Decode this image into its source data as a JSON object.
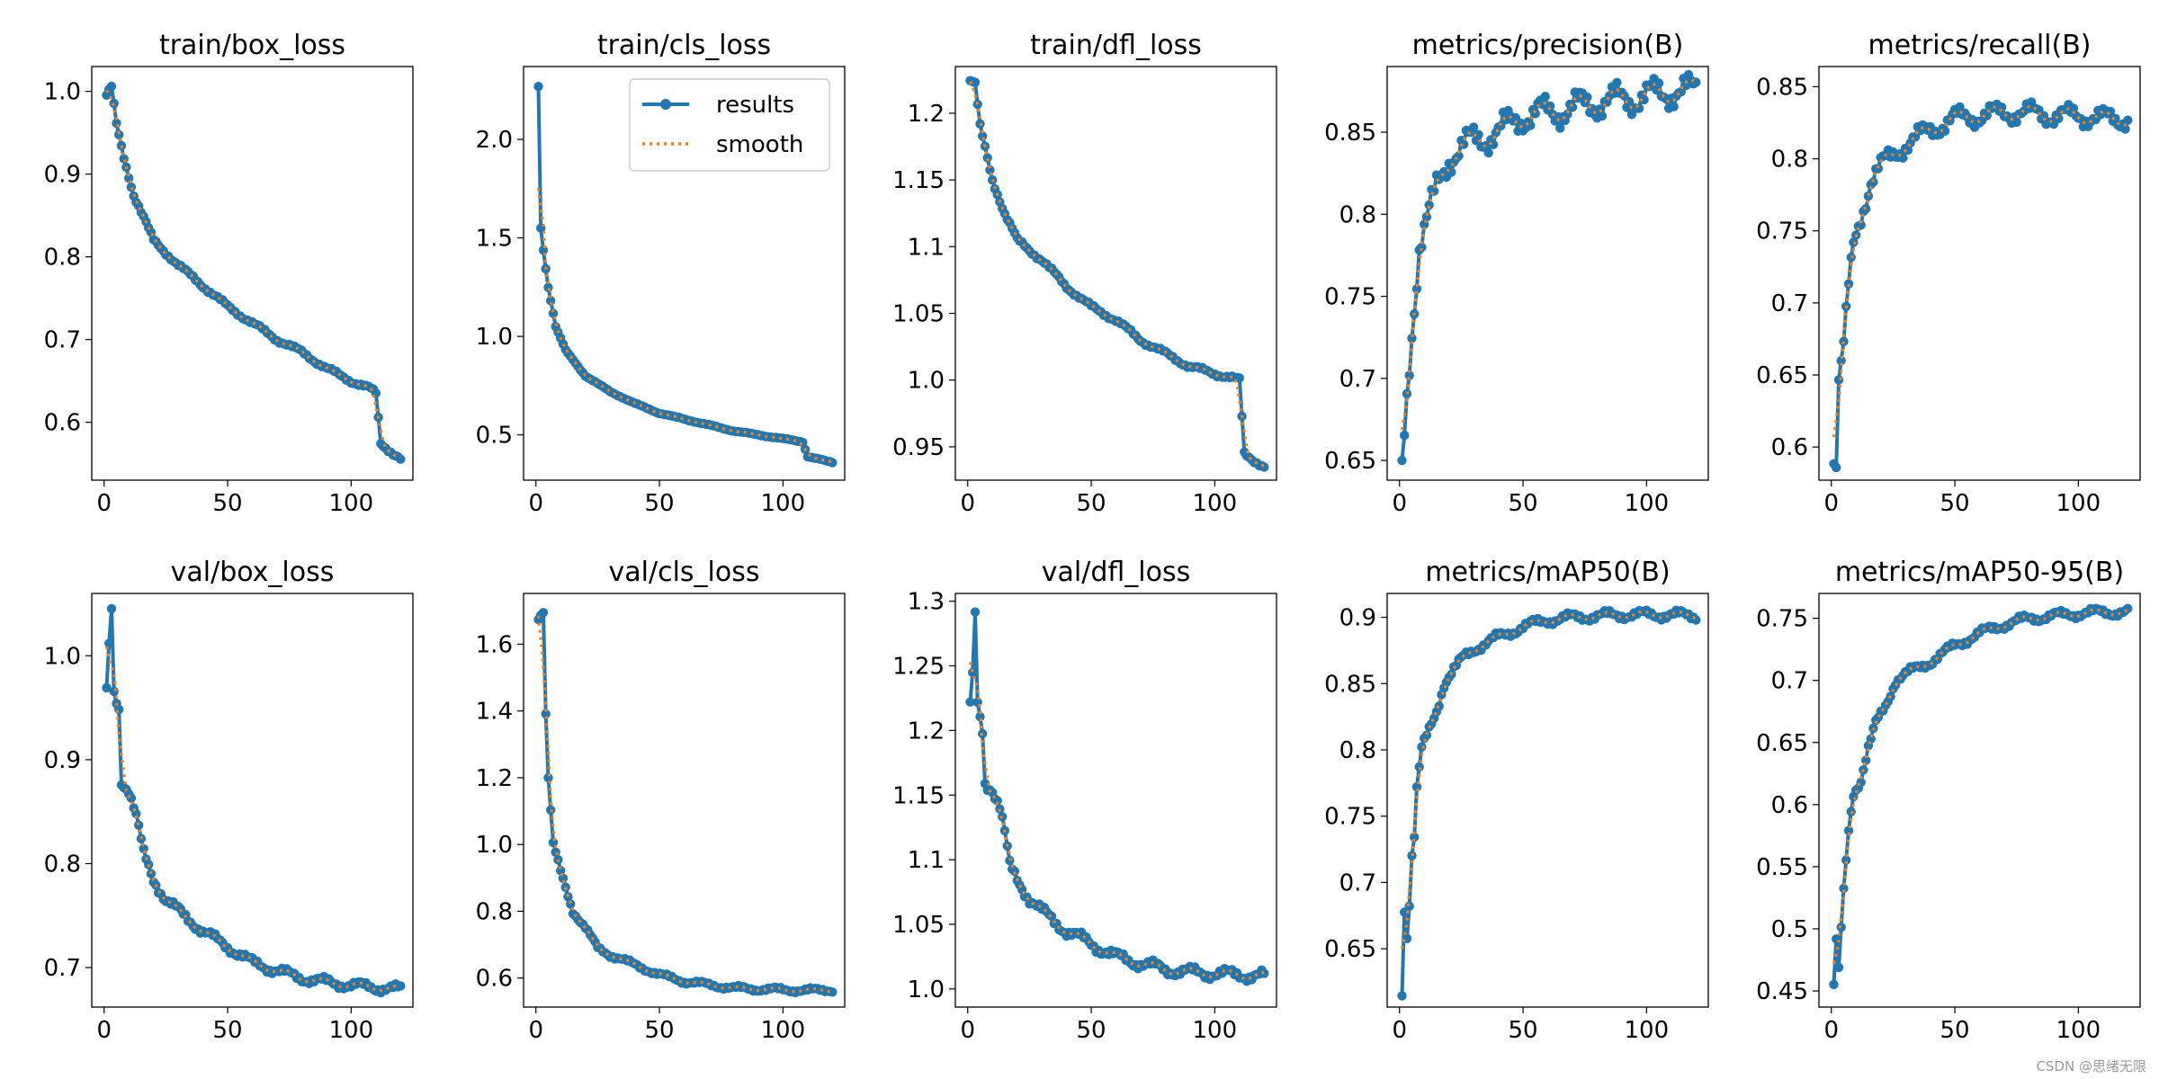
{
  "legend": {
    "results": "results",
    "smooth": "smooth",
    "position": "upper right of train/cls_loss"
  },
  "colors": {
    "results": "#1f77b4",
    "smooth": "#ff7f0e"
  },
  "watermark": "CSDN @思绪无限",
  "chart_data": [
    {
      "type": "line",
      "title": "train/box_loss",
      "xlim": [
        -5,
        125
      ],
      "ylim": [
        0.53,
        1.03
      ],
      "xticks": [
        0,
        50,
        100
      ],
      "yticks": [
        0.6,
        0.7,
        0.8,
        0.9,
        1.0
      ],
      "anchors": [
        [
          1,
          0.995
        ],
        [
          3,
          1.005
        ],
        [
          5,
          0.96
        ],
        [
          8,
          0.92
        ],
        [
          12,
          0.875
        ],
        [
          20,
          0.82
        ],
        [
          30,
          0.79
        ],
        [
          40,
          0.765
        ],
        [
          50,
          0.74
        ],
        [
          60,
          0.72
        ],
        [
          70,
          0.7
        ],
        [
          80,
          0.685
        ],
        [
          90,
          0.665
        ],
        [
          100,
          0.65
        ],
        [
          108,
          0.64
        ],
        [
          110,
          0.635
        ],
        [
          112,
          0.575
        ],
        [
          116,
          0.565
        ],
        [
          120,
          0.555
        ]
      ],
      "noise": 0.003,
      "series": [
        {
          "name": "results"
        },
        {
          "name": "smooth"
        }
      ]
    },
    {
      "type": "line",
      "title": "train/cls_loss",
      "xlim": [
        -5,
        125
      ],
      "ylim": [
        0.27,
        2.37
      ],
      "xticks": [
        0,
        50,
        100
      ],
      "yticks": [
        0.5,
        1.0,
        1.5,
        2.0
      ],
      "anchors": [
        [
          1,
          2.27
        ],
        [
          2,
          1.55
        ],
        [
          3,
          1.44
        ],
        [
          5,
          1.25
        ],
        [
          8,
          1.05
        ],
        [
          12,
          0.93
        ],
        [
          20,
          0.8
        ],
        [
          30,
          0.72
        ],
        [
          40,
          0.66
        ],
        [
          50,
          0.61
        ],
        [
          60,
          0.58
        ],
        [
          70,
          0.55
        ],
        [
          80,
          0.52
        ],
        [
          90,
          0.5
        ],
        [
          100,
          0.48
        ],
        [
          108,
          0.465
        ],
        [
          110,
          0.39
        ],
        [
          120,
          0.36
        ]
      ],
      "noise": 0.003,
      "series": [
        {
          "name": "results"
        },
        {
          "name": "smooth"
        }
      ]
    },
    {
      "type": "line",
      "title": "train/dfl_loss",
      "xlim": [
        -5,
        125
      ],
      "ylim": [
        0.925,
        1.235
      ],
      "xticks": [
        0,
        50,
        100
      ],
      "yticks": [
        0.95,
        1.0,
        1.05,
        1.1,
        1.15,
        1.2
      ],
      "anchors": [
        [
          1,
          1.225
        ],
        [
          3,
          1.222
        ],
        [
          5,
          1.19
        ],
        [
          10,
          1.15
        ],
        [
          15,
          1.125
        ],
        [
          20,
          1.105
        ],
        [
          30,
          1.09
        ],
        [
          40,
          1.07
        ],
        [
          50,
          1.055
        ],
        [
          60,
          1.045
        ],
        [
          70,
          1.03
        ],
        [
          80,
          1.02
        ],
        [
          90,
          1.01
        ],
        [
          100,
          1.005
        ],
        [
          110,
          1.0
        ],
        [
          112,
          0.945
        ],
        [
          120,
          0.935
        ]
      ],
      "noise": 0.002,
      "series": [
        {
          "name": "results"
        },
        {
          "name": "smooth"
        }
      ]
    },
    {
      "type": "line",
      "title": "metrics/precision(B)",
      "xlim": [
        -5,
        125
      ],
      "ylim": [
        0.638,
        0.89
      ],
      "xticks": [
        0,
        50,
        100
      ],
      "yticks": [
        0.65,
        0.7,
        0.75,
        0.8,
        0.85
      ],
      "anchors": [
        [
          1,
          0.645
        ],
        [
          3,
          0.69
        ],
        [
          5,
          0.73
        ],
        [
          8,
          0.78
        ],
        [
          12,
          0.8
        ],
        [
          16,
          0.82
        ],
        [
          20,
          0.835
        ],
        [
          30,
          0.845
        ],
        [
          40,
          0.85
        ],
        [
          50,
          0.86
        ],
        [
          60,
          0.862
        ],
        [
          70,
          0.865
        ],
        [
          80,
          0.868
        ],
        [
          90,
          0.87
        ],
        [
          100,
          0.872
        ],
        [
          110,
          0.875
        ],
        [
          120,
          0.875
        ]
      ],
      "noise": 0.011,
      "series": [
        {
          "name": "results"
        },
        {
          "name": "smooth"
        }
      ]
    },
    {
      "type": "line",
      "title": "metrics/recall(B)",
      "xlim": [
        -5,
        125
      ],
      "ylim": [
        0.577,
        0.864
      ],
      "xticks": [
        0,
        50,
        100
      ],
      "yticks": [
        0.6,
        0.65,
        0.7,
        0.75,
        0.8,
        0.85
      ],
      "anchors": [
        [
          1,
          0.59
        ],
        [
          2,
          0.59
        ],
        [
          3,
          0.645
        ],
        [
          5,
          0.67
        ],
        [
          7,
          0.71
        ],
        [
          9,
          0.74
        ],
        [
          12,
          0.76
        ],
        [
          16,
          0.785
        ],
        [
          20,
          0.795
        ],
        [
          30,
          0.81
        ],
        [
          40,
          0.82
        ],
        [
          50,
          0.828
        ],
        [
          60,
          0.83
        ],
        [
          70,
          0.832
        ],
        [
          80,
          0.832
        ],
        [
          90,
          0.83
        ],
        [
          100,
          0.83
        ],
        [
          110,
          0.828
        ],
        [
          120,
          0.828
        ]
      ],
      "noise": 0.008,
      "series": [
        {
          "name": "results"
        },
        {
          "name": "smooth"
        }
      ]
    },
    {
      "type": "line",
      "title": "val/box_loss",
      "xlim": [
        -5,
        125
      ],
      "ylim": [
        0.662,
        1.06
      ],
      "xticks": [
        0,
        50,
        100
      ],
      "yticks": [
        0.7,
        0.8,
        0.9,
        1.0
      ],
      "anchors": [
        [
          1,
          0.965
        ],
        [
          2,
          1.01
        ],
        [
          3,
          1.045
        ],
        [
          4,
          0.965
        ],
        [
          6,
          0.95
        ],
        [
          7,
          0.88
        ],
        [
          10,
          0.87
        ],
        [
          13,
          0.845
        ],
        [
          16,
          0.81
        ],
        [
          20,
          0.785
        ],
        [
          25,
          0.765
        ],
        [
          30,
          0.755
        ],
        [
          40,
          0.735
        ],
        [
          50,
          0.72
        ],
        [
          60,
          0.705
        ],
        [
          70,
          0.697
        ],
        [
          80,
          0.69
        ],
        [
          90,
          0.686
        ],
        [
          100,
          0.683
        ],
        [
          110,
          0.681
        ],
        [
          120,
          0.679
        ]
      ],
      "noise": 0.005,
      "series": [
        {
          "name": "results"
        },
        {
          "name": "smooth"
        }
      ]
    },
    {
      "type": "line",
      "title": "val/cls_loss",
      "xlim": [
        -5,
        125
      ],
      "ylim": [
        0.513,
        1.752
      ],
      "xticks": [
        0,
        50,
        100
      ],
      "yticks": [
        0.6,
        0.8,
        1.0,
        1.2,
        1.4,
        1.6
      ],
      "anchors": [
        [
          1,
          1.68
        ],
        [
          3,
          1.7
        ],
        [
          4,
          1.39
        ],
        [
          5,
          1.2
        ],
        [
          7,
          1.0
        ],
        [
          10,
          0.92
        ],
        [
          15,
          0.8
        ],
        [
          20,
          0.75
        ],
        [
          25,
          0.69
        ],
        [
          30,
          0.67
        ],
        [
          40,
          0.64
        ],
        [
          50,
          0.61
        ],
        [
          60,
          0.59
        ],
        [
          70,
          0.58
        ],
        [
          80,
          0.57
        ],
        [
          90,
          0.567
        ],
        [
          100,
          0.565
        ],
        [
          110,
          0.563
        ],
        [
          120,
          0.565
        ]
      ],
      "noise": 0.008,
      "series": [
        {
          "name": "results"
        },
        {
          "name": "smooth"
        }
      ]
    },
    {
      "type": "line",
      "title": "val/dfl_loss",
      "xlim": [
        -5,
        125
      ],
      "ylim": [
        0.986,
        1.306
      ],
      "xticks": [
        0,
        50,
        100
      ],
      "yticks": [
        1.0,
        1.05,
        1.1,
        1.15,
        1.2,
        1.25,
        1.3
      ],
      "anchors": [
        [
          1,
          1.22
        ],
        [
          2,
          1.24
        ],
        [
          3,
          1.29
        ],
        [
          4,
          1.22
        ],
        [
          6,
          1.2
        ],
        [
          7,
          1.16
        ],
        [
          10,
          1.155
        ],
        [
          13,
          1.14
        ],
        [
          15,
          1.12
        ],
        [
          17,
          1.095
        ],
        [
          20,
          1.085
        ],
        [
          25,
          1.07
        ],
        [
          30,
          1.06
        ],
        [
          40,
          1.045
        ],
        [
          50,
          1.035
        ],
        [
          60,
          1.025
        ],
        [
          70,
          1.02
        ],
        [
          80,
          1.015
        ],
        [
          90,
          1.013
        ],
        [
          100,
          1.012
        ],
        [
          110,
          1.011
        ],
        [
          120,
          1.01
        ]
      ],
      "noise": 0.005,
      "series": [
        {
          "name": "results"
        },
        {
          "name": "smooth"
        }
      ]
    },
    {
      "type": "line",
      "title": "metrics/mAP50(B)",
      "xlim": [
        -5,
        125
      ],
      "ylim": [
        0.606,
        0.918
      ],
      "xticks": [
        0,
        50,
        100
      ],
      "yticks": [
        0.65,
        0.7,
        0.75,
        0.8,
        0.85,
        0.9
      ],
      "anchors": [
        [
          1,
          0.618
        ],
        [
          2,
          0.68
        ],
        [
          3,
          0.66
        ],
        [
          4,
          0.685
        ],
        [
          5,
          0.72
        ],
        [
          6,
          0.735
        ],
        [
          7,
          0.77
        ],
        [
          9,
          0.8
        ],
        [
          12,
          0.815
        ],
        [
          15,
          0.83
        ],
        [
          18,
          0.85
        ],
        [
          22,
          0.86
        ],
        [
          26,
          0.87
        ],
        [
          30,
          0.876
        ],
        [
          40,
          0.885
        ],
        [
          50,
          0.893
        ],
        [
          60,
          0.898
        ],
        [
          70,
          0.9
        ],
        [
          80,
          0.901
        ],
        [
          90,
          0.902
        ],
        [
          100,
          0.902
        ],
        [
          110,
          0.902
        ],
        [
          120,
          0.901
        ]
      ],
      "noise": 0.004,
      "series": [
        {
          "name": "results"
        },
        {
          "name": "smooth"
        }
      ]
    },
    {
      "type": "line",
      "title": "metrics/mAP50-95(B)",
      "xlim": [
        -5,
        125
      ],
      "ylim": [
        0.437,
        0.77
      ],
      "xticks": [
        0,
        50,
        100
      ],
      "yticks": [
        0.45,
        0.5,
        0.55,
        0.6,
        0.65,
        0.7,
        0.75
      ],
      "anchors": [
        [
          1,
          0.453
        ],
        [
          2,
          0.49
        ],
        [
          3,
          0.465
        ],
        [
          4,
          0.5
        ],
        [
          5,
          0.53
        ],
        [
          7,
          0.58
        ],
        [
          9,
          0.61
        ],
        [
          12,
          0.62
        ],
        [
          15,
          0.645
        ],
        [
          18,
          0.665
        ],
        [
          22,
          0.68
        ],
        [
          26,
          0.7
        ],
        [
          30,
          0.705
        ],
        [
          40,
          0.715
        ],
        [
          50,
          0.728
        ],
        [
          60,
          0.738
        ],
        [
          70,
          0.745
        ],
        [
          80,
          0.75
        ],
        [
          90,
          0.752
        ],
        [
          100,
          0.754
        ],
        [
          110,
          0.755
        ],
        [
          120,
          0.755
        ]
      ],
      "noise": 0.004,
      "series": [
        {
          "name": "results"
        },
        {
          "name": "smooth"
        }
      ]
    }
  ]
}
